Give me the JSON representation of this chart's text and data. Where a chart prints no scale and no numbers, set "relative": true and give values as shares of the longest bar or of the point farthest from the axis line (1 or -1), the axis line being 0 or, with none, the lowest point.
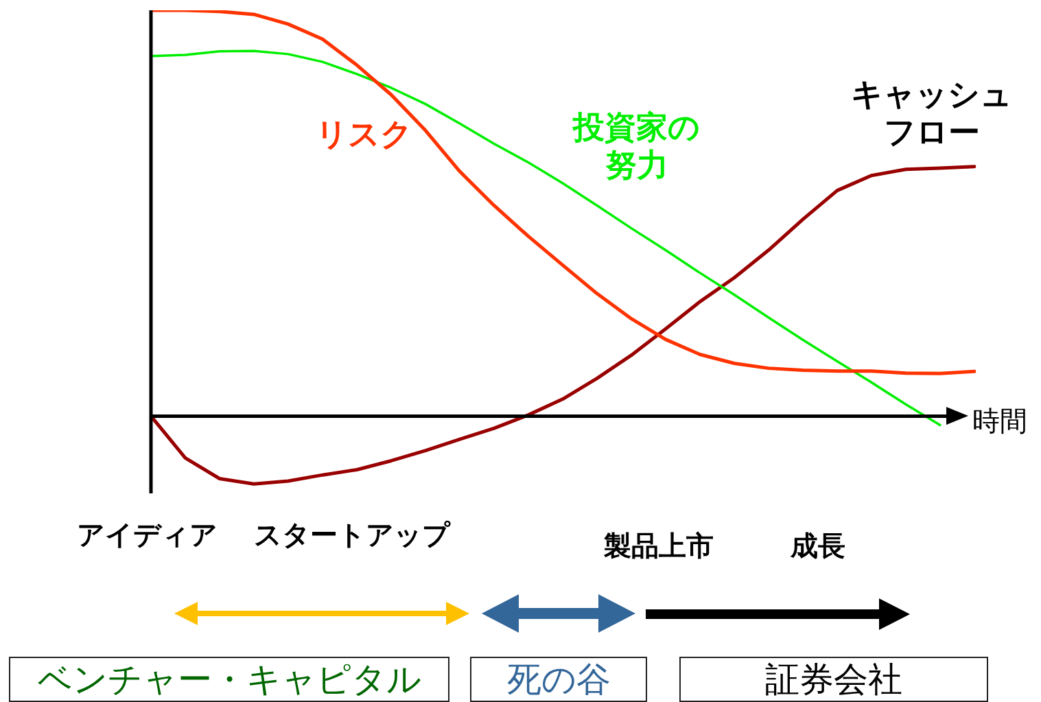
{
  "chart_data": {
    "type": "line",
    "relative": true,
    "xlabel": "時間",
    "categories": [
      null,
      null,
      null,
      null,
      null,
      null,
      null,
      null,
      null,
      null,
      null,
      null,
      null,
      null,
      null,
      null,
      null,
      null,
      null,
      null,
      null,
      null,
      null,
      null,
      null
    ],
    "series": [
      {
        "name": "リスク",
        "color": "#ff3300",
        "values": [
          1.0,
          1.0,
          0.997,
          0.99,
          0.966,
          0.929,
          0.865,
          0.792,
          0.704,
          0.603,
          0.519,
          0.443,
          0.372,
          0.302,
          0.24,
          0.189,
          0.152,
          0.13,
          0.118,
          0.113,
          0.111,
          0.111,
          0.106,
          0.105,
          0.11
        ]
      },
      {
        "name": "投資家の努力",
        "color": "#00ee00",
        "values": [
          0.887,
          0.89,
          0.899,
          0.9,
          0.892,
          0.873,
          0.843,
          0.809,
          0.769,
          0.721,
          0.671,
          0.625,
          0.574,
          0.519,
          0.463,
          0.409,
          0.353,
          0.299,
          0.243,
          0.188,
          0.135,
          0.083,
          0.029,
          -0.022,
          null
        ]
      },
      {
        "name": "キャッシュフロー",
        "color": "#990000",
        "values": [
          0,
          -0.103,
          -0.154,
          -0.167,
          -0.16,
          -0.145,
          -0.132,
          -0.11,
          -0.085,
          -0.057,
          -0.03,
          0.003,
          0.042,
          0.093,
          0.15,
          0.215,
          0.282,
          0.341,
          0.409,
          0.485,
          0.556,
          0.593,
          0.608,
          0.611,
          0.615
        ]
      }
    ],
    "annotations": [
      "アイディア",
      "スタートアップ",
      "製品上市",
      "成長",
      "ベンチャー・キャピタル",
      "死の谷",
      "証券会社"
    ],
    "legend": false,
    "marker": "none",
    "line_style": "solid",
    "tick_labels": false
  }
}
